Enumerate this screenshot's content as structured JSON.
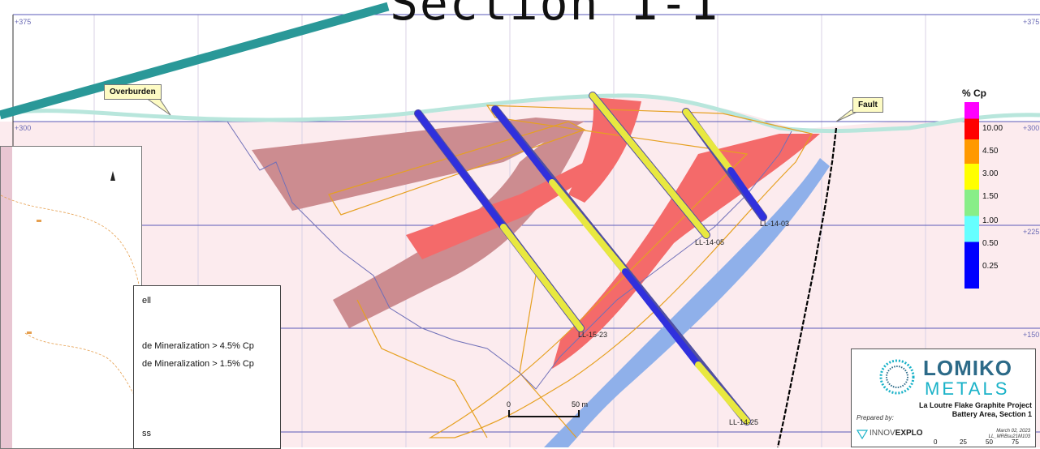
{
  "title": "Section 1-1",
  "elevations": {
    "left": [
      "+375",
      "+300"
    ],
    "right": [
      "+375",
      "+300",
      "+225",
      "+150"
    ]
  },
  "callouts": {
    "overburden": "Overburden",
    "fault": "Fault"
  },
  "drill_holes": [
    "LL-14-03",
    "LL-14-05",
    "LL-15-23",
    "LL-14-25"
  ],
  "legend": {
    "title": "% Cp",
    "ticks": [
      "10.00",
      "4.50",
      "3.00",
      "1.50",
      "1.00",
      "0.50",
      "0.25"
    ],
    "colors": [
      "#ff00ff",
      "#ff0000",
      "#ff9900",
      "#ffff00",
      "#88ee88",
      "#66ffff",
      "#0000ff"
    ]
  },
  "legend_box": {
    "items": [
      "ell",
      "de Mineralization > 4.5% Cp",
      "de Mineralization > 1.5% Cp",
      "ss"
    ]
  },
  "scale_bar": {
    "start": "0",
    "end": "50 m"
  },
  "bottom_scale": [
    "0",
    "25",
    "50",
    "75"
  ],
  "logo": {
    "name": "LOMIKO",
    "sub": "METALS",
    "project_line1": "La Loutre Flake Graphite Project",
    "project_line2": "Battery Area, Section 1",
    "prepared_by": "Prepared by:",
    "innov_prefix": "INNOV",
    "innov_suffix": "EXPLO",
    "date": "March 02, 2023",
    "ref": "LL_MRBsu21M103"
  },
  "colors": {
    "bedrock": "#fcebee",
    "grid": "#5a5ab8",
    "overburden": "#b8e6dc",
    "low_grade": "#cc8c90",
    "high_grade": "#f46a6a",
    "blue_zone": "#8fb0ea",
    "arrow": "#2a9898"
  }
}
